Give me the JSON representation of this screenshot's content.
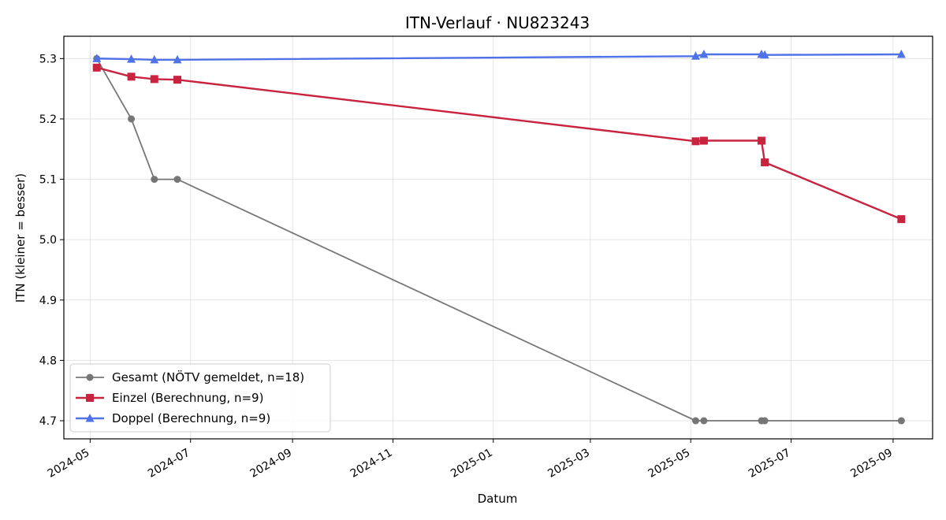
{
  "chart_data": {
    "type": "line",
    "title": "ITN-Verlauf · NU823243",
    "xlabel": "Datum",
    "ylabel": "ITN  (kleiner = besser)",
    "x_ticks": [
      "2024-05",
      "2024-07",
      "2024-09",
      "2024-11",
      "2025-01",
      "2025-03",
      "2025-05",
      "2025-07",
      "2025-09"
    ],
    "y_ticks": [
      "4.7",
      "4.8",
      "4.9",
      "5.0",
      "5.1",
      "5.2",
      "5.3"
    ],
    "xlim": [
      "2024-04-15",
      "2025-09-25"
    ],
    "ylim": [
      4.67,
      5.337
    ],
    "grid": true,
    "legend_position": "lower-left",
    "series": [
      {
        "name": "Gesamt (NÖTV gemeldet, n=18)",
        "color": "#444444",
        "marker": "circle",
        "points": [
          [
            "2024-05-05",
            5.3
          ],
          [
            "2024-05-26",
            5.2
          ],
          [
            "2024-06-09",
            5.1
          ],
          [
            "2024-06-23",
            5.1
          ],
          [
            "2025-05-04",
            4.7
          ],
          [
            "2025-05-09",
            4.7
          ],
          [
            "2025-06-13",
            4.7
          ],
          [
            "2025-06-15",
            4.7
          ],
          [
            "2025-09-06",
            4.7
          ]
        ]
      },
      {
        "name": "Einzel (Berechnung, n=9)",
        "color": "#c8233f",
        "marker": "square",
        "points": [
          [
            "2024-05-05",
            5.285
          ],
          [
            "2024-05-26",
            5.27
          ],
          [
            "2024-06-09",
            5.266
          ],
          [
            "2024-06-23",
            5.265
          ],
          [
            "2025-05-04",
            5.163
          ],
          [
            "2025-05-09",
            5.164
          ],
          [
            "2025-06-13",
            5.164
          ],
          [
            "2025-06-15",
            5.128
          ],
          [
            "2025-09-06",
            5.034
          ]
        ]
      },
      {
        "name": "Doppel (Berechnung, n=9)",
        "color": "#4f72e8",
        "marker": "triangle",
        "points": [
          [
            "2024-05-05",
            5.3
          ],
          [
            "2024-05-26",
            5.299
          ],
          [
            "2024-06-09",
            5.298
          ],
          [
            "2024-06-23",
            5.298
          ],
          [
            "2025-05-04",
            5.304
          ],
          [
            "2025-05-09",
            5.307
          ],
          [
            "2025-06-13",
            5.307
          ],
          [
            "2025-06-15",
            5.306
          ],
          [
            "2025-09-06",
            5.307
          ]
        ]
      }
    ]
  }
}
